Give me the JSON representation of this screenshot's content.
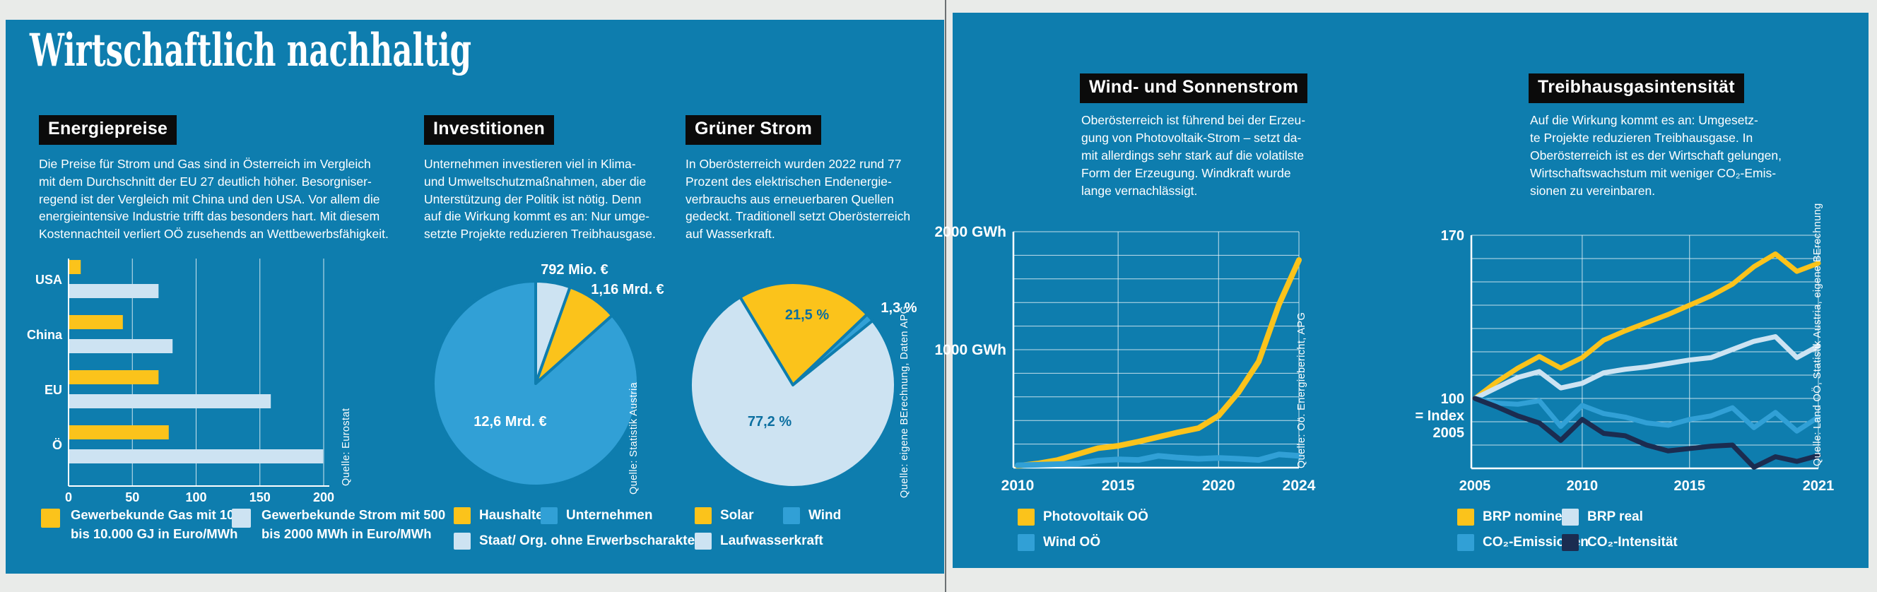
{
  "title": "Wirtschaftlich nachhaltig",
  "colors": {
    "page_teal": "#0e7dae",
    "yellow": "#fbc31b",
    "pale_blue": "#cde3f2",
    "medium_blue": "#31a0d6",
    "navy": "#1b2c50",
    "header_black": "#0b0b0b",
    "label_teal": "#0c6fa0",
    "white": "#ffffff"
  },
  "sections": {
    "energiepreise": {
      "header": "Energiepreise",
      "text": "Die Preise für Strom und Gas sind in Österreich im Vergleich\nmit dem Durchschnitt der EU 27 deutlich höher. Besorgniser-\nregend ist der Vergleich mit China und den USA. Vor allem die\nenergieintensive Industrie trifft das besonders hart. Mit diesem\nKostennachteil verliert OÖ zusehends an Wettbewerbsfähigkeit.",
      "source": "Quelle: Eurostat",
      "legend": [
        {
          "line1": "Gewerbekunde Gas mit 1000",
          "line2": "bis 10.000 GJ in Euro/MWh"
        },
        {
          "line1": "Gewerbekunde Strom mit 500",
          "line2": "bis 2000 MWh in Euro/MWh"
        }
      ]
    },
    "investitionen": {
      "header": "Investitionen",
      "text": "Unternehmen investieren viel in Klima-\nund Umweltschutzmaßnahmen, aber die\nUnterstützung der Politik ist nötig. Denn\nauf die Wirkung kommt es an: Nur umge-\nsetzte Projekte reduzieren Treibhausgase.",
      "source": "Quelle: Statistik Austria"
    },
    "gruener_strom": {
      "header": "Grüner Strom",
      "text": "In Oberösterreich wurden 2022 rund 77\nProzent des elektrischen Endenergie-\nverbrauchs aus erneuerbaren Quellen\ngedeckt. Traditionell setzt Oberösterreich\nauf Wasserkraft.",
      "source": "Quelle: eigene BErechnung, Daten APG"
    },
    "wind_sonne": {
      "header": "Wind- und Sonnenstrom",
      "text": "Oberösterreich ist führend bei der Erzeu-\ngung von Photovoltaik-Strom – setzt da-\nmit allerdings sehr stark auf die volatilste\nForm der Erzeugung. Windkraft wurde\nlange vernachlässigt.",
      "source": "Quelle: Oö. Energiebericht, APG"
    },
    "treibhausgas": {
      "header": "Treibhausgasintensität",
      "text": "Auf die Wirkung kommt es an: Umgesetz-\nte Projekte reduzieren Treibhausgase. In\nOberösterreich ist es der Wirtschaft gelungen,\nWirtschaftswachstum mit weniger CO₂-Emis-\nsionen zu vereinbaren.",
      "source": "Quelle: Land OÖ, Statistik Austria, eigene BErechnung"
    }
  },
  "chart_data": [
    {
      "type": "bar",
      "title": "Energiepreise",
      "orientation": "horizontal",
      "categories": [
        "USA",
        "China",
        "EU",
        "Ö"
      ],
      "series": [
        {
          "name": "Gewerbekunde Gas mit 1000 bis 10.000 GJ in Euro/MWh",
          "color": "#fbc31b",
          "values": [
            9,
            42,
            70,
            78
          ]
        },
        {
          "name": "Gewerbekunde Strom mit 500 bis 2000 MWh in Euro/MWh",
          "color": "#cde3f2",
          "values": [
            70,
            81,
            158,
            199
          ]
        }
      ],
      "xlim": [
        0,
        200
      ],
      "xticks": [
        0,
        50,
        100,
        150,
        200
      ],
      "unit": "Euro/MWh",
      "grid": true,
      "legend_position": "bottom"
    },
    {
      "type": "pie",
      "title": "Investitionen",
      "start_angle_deg": 0,
      "slices": [
        {
          "label": "Staat/ Org. ohne Erwerbscharakter",
          "value": 0.792,
          "display": "792 Mio. €",
          "color": "#cde3f2"
        },
        {
          "label": "Haushalte",
          "value": 1.16,
          "display": "1,16 Mrd. €",
          "color": "#fbc31b"
        },
        {
          "label": "Unternehmen",
          "value": 12.6,
          "display": "12,6 Mrd. €",
          "color": "#31a0d6"
        }
      ],
      "unit": "Mrd. €",
      "legend_position": "bottom"
    },
    {
      "type": "pie",
      "title": "Grüner Strom",
      "start_angle_deg": -31,
      "slices": [
        {
          "label": "Solar",
          "value": 21.5,
          "display": "21,5 %",
          "color": "#fbc31b"
        },
        {
          "label": "Wind",
          "value": 1.3,
          "display": "1,3 %",
          "color": "#31a0d6"
        },
        {
          "label": "Laufwasserkraft",
          "value": 77.2,
          "display": "77,2 %",
          "color": "#cde3f2"
        }
      ],
      "unit": "%",
      "legend_position": "bottom"
    },
    {
      "type": "line",
      "title": "Wind- und Sonnenstrom",
      "x": [
        2010,
        2011,
        2012,
        2013,
        2014,
        2015,
        2016,
        2017,
        2018,
        2019,
        2020,
        2021,
        2022,
        2023,
        2024
      ],
      "series": [
        {
          "name": "Photovoltaik OÖ",
          "color": "#fbc31b",
          "values": [
            15,
            35,
            65,
            115,
            165,
            185,
            220,
            260,
            300,
            335,
            440,
            640,
            900,
            1380,
            1760
          ]
        },
        {
          "name": "Wind OÖ",
          "color": "#31a0d6",
          "values": [
            20,
            25,
            30,
            35,
            60,
            70,
            65,
            100,
            85,
            75,
            82,
            75,
            65,
            112,
            100
          ]
        }
      ],
      "ylim": [
        0,
        2000
      ],
      "ygrid_step": 200,
      "yticks": [
        {
          "value": 2000,
          "label_lines": [
            "2000 GWh"
          ]
        },
        {
          "value": 1000,
          "label_lines": [
            "1000 GWh"
          ]
        }
      ],
      "xticks": [
        2010,
        2015,
        2020,
        2024
      ],
      "grid": true,
      "legend_position": "bottom"
    },
    {
      "type": "line",
      "title": "Treibhausgasintensität",
      "x": [
        2005,
        2006,
        2007,
        2008,
        2009,
        2010,
        2011,
        2012,
        2013,
        2014,
        2015,
        2016,
        2017,
        2018,
        2019,
        2020,
        2021
      ],
      "series": [
        {
          "name": "BRP nominell",
          "color": "#fbc31b",
          "values": [
            100,
            107,
            113,
            118,
            113,
            117.5,
            125,
            129,
            132.5,
            136,
            140,
            144,
            149,
            156.5,
            162,
            154.5,
            158
          ]
        },
        {
          "name": "BRP real",
          "color": "#cde3f2",
          "values": [
            100,
            104.5,
            109,
            111.5,
            104.5,
            106.5,
            111,
            112.5,
            113.5,
            115,
            116.5,
            117.5,
            121,
            124.5,
            126.5,
            117.5,
            122.5
          ]
        },
        {
          "name": "CO₂-Emissionen",
          "color": "#31a0d6",
          "values": [
            100,
            98,
            97.5,
            99,
            88,
            97,
            93.5,
            92,
            89.5,
            88.5,
            91,
            92.5,
            96,
            87.5,
            94,
            86,
            92
          ]
        },
        {
          "name": "CO₂-Intensität",
          "color": "#1b2c50",
          "values": [
            100,
            96.5,
            92.5,
            89.5,
            82,
            91,
            85,
            84,
            80,
            77.5,
            78.5,
            79.5,
            80,
            70.5,
            75,
            73,
            75.5
          ]
        }
      ],
      "ylim": [
        70,
        170
      ],
      "ygrid_step": 10,
      "yticks": [
        {
          "value": 170,
          "label_lines": [
            "170"
          ]
        },
        {
          "value": 100,
          "label_lines": [
            "100",
            "= Index",
            "2005"
          ]
        }
      ],
      "xticks": [
        2005,
        2010,
        2015,
        2021
      ],
      "grid": true,
      "legend_position": "bottom"
    }
  ]
}
